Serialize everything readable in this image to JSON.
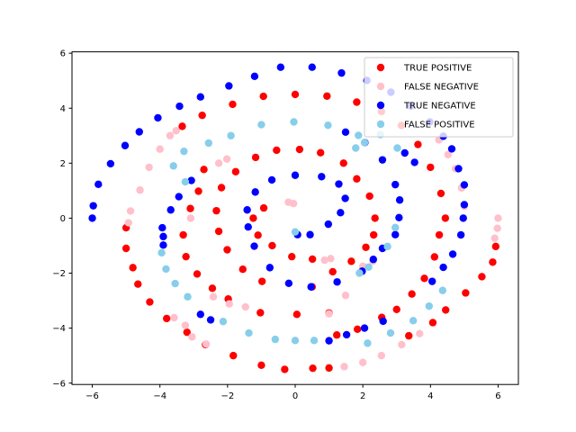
{
  "chart_data": {
    "type": "scatter",
    "title": "",
    "xlabel": "",
    "ylabel": "",
    "xlim": [
      -6.6,
      6.6
    ],
    "ylim": [
      -6.05,
      6.05
    ],
    "xticks": [
      -6,
      -4,
      -2,
      0,
      2,
      4,
      6
    ],
    "xtick_labels": [
      "−6",
      "−4",
      "−2",
      "0",
      "2",
      "4",
      "6"
    ],
    "yticks": [
      -6,
      -4,
      -2,
      0,
      2,
      4,
      6
    ],
    "ytick_labels": [
      "−6",
      "−4",
      "−2",
      "0",
      "2",
      "4",
      "6"
    ],
    "grid": false,
    "legend_position": "top-right",
    "series": [
      {
        "name": "TRUE POSITIVE",
        "color": "#ff0000",
        "points": [
          [
            -0.93,
            0.37
          ],
          [
            -1.24,
            0.0
          ],
          [
            -1.1,
            -0.62
          ],
          [
            -0.68,
            -1.0
          ],
          [
            -0.1,
            -1.4
          ],
          [
            0.51,
            -1.49
          ],
          [
            0.5,
            -2.5
          ],
          [
            -0.98,
            -2.3
          ],
          [
            -1.55,
            -1.86
          ],
          [
            -2.01,
            -1.15
          ],
          [
            -2.26,
            -0.48
          ],
          [
            -2.33,
            0.27
          ],
          [
            -2.18,
            1.11
          ],
          [
            -1.76,
            1.69
          ],
          [
            -1.17,
            2.21
          ],
          [
            -0.55,
            2.47
          ],
          [
            0.13,
            2.5
          ],
          [
            0.75,
            2.38
          ],
          [
            1.43,
            2.0
          ],
          [
            1.82,
            1.43
          ],
          [
            2.2,
            0.8
          ],
          [
            2.36,
            0.0
          ],
          [
            2.32,
            -0.61
          ],
          [
            2.09,
            -1.06
          ],
          [
            1.66,
            -1.57
          ],
          [
            1.11,
            -1.95
          ],
          [
            1.0,
            -3.45
          ],
          [
            0.05,
            -3.5
          ],
          [
            -1.03,
            -3.44
          ],
          [
            -1.98,
            -2.94
          ],
          [
            -2.45,
            -2.55
          ],
          [
            -2.9,
            -2.03
          ],
          [
            -3.23,
            -1.4
          ],
          [
            -3.31,
            -0.61
          ],
          [
            -3.1,
            0.35
          ],
          [
            -2.86,
            0.98
          ],
          [
            -2.7,
            1.77
          ],
          [
            -3.34,
            3.34
          ],
          [
            -2.75,
            3.74
          ],
          [
            -1.85,
            4.14
          ],
          [
            -0.94,
            4.43
          ],
          [
            0.0,
            4.5
          ],
          [
            0.94,
            4.44
          ],
          [
            1.82,
            4.22
          ],
          [
            2.55,
            3.88
          ],
          [
            3.14,
            3.37
          ],
          [
            3.63,
            2.68
          ],
          [
            4.0,
            1.85
          ],
          [
            4.31,
            0.9
          ],
          [
            4.44,
            0.0
          ],
          [
            4.26,
            -0.61
          ],
          [
            4.12,
            -1.41
          ],
          [
            3.82,
            -2.19
          ],
          [
            3.45,
            -2.76
          ],
          [
            3.0,
            -3.32
          ],
          [
            2.56,
            -3.61
          ],
          [
            1.84,
            -4.04
          ],
          [
            1.23,
            -4.25
          ],
          [
            -5.0,
            -0.35
          ],
          [
            -5.0,
            -1.1
          ],
          [
            -4.8,
            -1.8
          ],
          [
            -4.65,
            -2.4
          ],
          [
            -4.3,
            -3.05
          ],
          [
            -3.8,
            -3.65
          ],
          [
            -3.2,
            -4.15
          ],
          [
            -2.65,
            -4.6
          ],
          [
            -1.83,
            -5.0
          ],
          [
            -1.0,
            -5.35
          ],
          [
            -0.31,
            -5.5
          ],
          [
            0.52,
            -5.46
          ],
          [
            1.0,
            -5.45
          ],
          [
            3.36,
            -4.28
          ],
          [
            4.07,
            -3.8
          ],
          [
            4.45,
            -3.34
          ],
          [
            5.04,
            -2.72
          ],
          [
            5.52,
            -2.13
          ],
          [
            5.84,
            -1.6
          ],
          [
            5.93,
            -1.03
          ]
        ]
      },
      {
        "name": "FALSE NEGATIVE",
        "color": "#ffc0cb",
        "points": [
          [
            -0.2,
            0.58
          ],
          [
            -0.05,
            0.53
          ],
          [
            0.87,
            -1.53
          ],
          [
            1.05,
            -1.47
          ],
          [
            -2.26,
            2.0
          ],
          [
            -2.02,
            2.15
          ],
          [
            1.49,
            -2.81
          ],
          [
            1.0,
            -3.48
          ],
          [
            -3.09,
            0.0
          ],
          [
            -2.42,
            -2.86
          ],
          [
            -1.95,
            -3.12
          ],
          [
            -1.47,
            -3.23
          ],
          [
            2.0,
            -1.75
          ],
          [
            2.3,
            -1.56
          ],
          [
            -3.7,
            3.0
          ],
          [
            -3.52,
            3.18
          ],
          [
            -4.0,
            2.51
          ],
          [
            -4.32,
            1.85
          ],
          [
            -4.59,
            1.02
          ],
          [
            -4.87,
            0.26
          ],
          [
            -4.93,
            -0.17
          ],
          [
            -3.25,
            -3.9
          ],
          [
            -3.58,
            -3.62
          ],
          [
            -3.05,
            -4.32
          ],
          [
            -2.63,
            -4.58
          ],
          [
            1.45,
            -5.4
          ],
          [
            2.0,
            -5.25
          ],
          [
            2.55,
            -5.0
          ],
          [
            3.15,
            -4.6
          ],
          [
            3.68,
            -4.2
          ],
          [
            4.25,
            2.85
          ],
          [
            4.52,
            2.31
          ],
          [
            4.74,
            1.8
          ],
          [
            4.92,
            1.1
          ],
          [
            5.0,
            0.43
          ],
          [
            6.0,
            0.0
          ],
          [
            5.98,
            -0.37
          ],
          [
            5.9,
            -0.73
          ]
        ]
      },
      {
        "name": "TRUE NEGATIVE",
        "color": "#0000ff",
        "points": [
          [
            0.07,
            -0.6
          ],
          [
            0.44,
            -0.6
          ],
          [
            0.98,
            -0.22
          ],
          [
            1.34,
            0.2
          ],
          [
            1.48,
            0.72
          ],
          [
            1.29,
            1.24
          ],
          [
            0.78,
            1.51
          ],
          [
            0.0,
            1.56
          ],
          [
            -0.69,
            1.39
          ],
          [
            -1.18,
            0.95
          ],
          [
            -1.42,
            0.3
          ],
          [
            -1.39,
            -0.32
          ],
          [
            -1.21,
            -1.02
          ],
          [
            -0.75,
            -1.8
          ],
          [
            -0.19,
            -2.37
          ],
          [
            0.47,
            -2.5
          ],
          [
            1.24,
            -2.32
          ],
          [
            1.98,
            -1.93
          ],
          [
            2.31,
            -1.5
          ],
          [
            2.58,
            -1.1
          ],
          [
            2.96,
            -0.6
          ],
          [
            3.07,
            0.02
          ],
          [
            3.09,
            0.66
          ],
          [
            2.96,
            1.22
          ],
          [
            2.58,
            2.12
          ],
          [
            2.06,
            2.75
          ],
          [
            1.49,
            3.13
          ],
          [
            3.53,
            2.03
          ],
          [
            3.24,
            2.37
          ],
          [
            -3.07,
            1.37
          ],
          [
            -3.44,
            0.78
          ],
          [
            -3.68,
            0.3
          ],
          [
            -3.93,
            -0.35
          ],
          [
            -3.9,
            -0.67
          ],
          [
            -3.9,
            -0.98
          ],
          [
            -2.8,
            -3.5
          ],
          [
            -2.5,
            -3.7
          ],
          [
            1.0,
            -4.46
          ],
          [
            1.52,
            -4.24
          ],
          [
            2.05,
            -4.0
          ],
          [
            2.6,
            -3.75
          ],
          [
            -6.0,
            0.0
          ],
          [
            -5.97,
            0.45
          ],
          [
            -5.82,
            1.23
          ],
          [
            -5.46,
            1.98
          ],
          [
            -5.03,
            2.64
          ],
          [
            -4.61,
            3.14
          ],
          [
            -4.06,
            3.65
          ],
          [
            -3.42,
            4.07
          ],
          [
            -2.8,
            4.41
          ],
          [
            -1.96,
            4.81
          ],
          [
            -1.2,
            5.16
          ],
          [
            -0.43,
            5.49
          ],
          [
            0.5,
            5.49
          ],
          [
            1.37,
            5.28
          ],
          [
            2.12,
            5.01
          ],
          [
            2.83,
            4.58
          ],
          [
            3.42,
            4.08
          ],
          [
            3.98,
            3.5
          ],
          [
            4.38,
            2.98
          ],
          [
            4.63,
            2.52
          ],
          [
            4.83,
            1.8
          ],
          [
            5.0,
            1.21
          ],
          [
            5.0,
            0.49
          ],
          [
            4.97,
            0.0
          ],
          [
            4.9,
            -0.61
          ],
          [
            4.66,
            -1.31
          ],
          [
            4.38,
            -1.79
          ],
          [
            4.05,
            -2.3
          ]
        ]
      },
      {
        "name": "FALSE POSITIVE",
        "color": "#87ceeb",
        "points": [
          [
            0.0,
            -0.5
          ],
          [
            1.79,
            2.55
          ],
          [
            2.05,
            2.75
          ],
          [
            -2.56,
            2.73
          ],
          [
            -3.25,
            1.32
          ],
          [
            -1.9,
            3.0
          ],
          [
            -1.0,
            3.4
          ],
          [
            -0.04,
            3.5
          ],
          [
            0.97,
            3.38
          ],
          [
            1.87,
            3.01
          ],
          [
            2.52,
            3.04
          ],
          [
            3.02,
            2.55
          ],
          [
            -3.95,
            -1.26
          ],
          [
            -3.82,
            -1.85
          ],
          [
            -3.55,
            -2.38
          ],
          [
            -3.18,
            -2.86
          ],
          [
            -2.13,
            -3.76
          ],
          [
            -1.37,
            -4.18
          ],
          [
            -0.59,
            -4.41
          ],
          [
            0.0,
            -4.45
          ],
          [
            0.56,
            -4.45
          ],
          [
            1.9,
            -2.0
          ],
          [
            2.17,
            -1.78
          ],
          [
            2.73,
            -1.03
          ],
          [
            2.96,
            -0.34
          ],
          [
            4.36,
            -2.63
          ],
          [
            3.96,
            -3.2
          ],
          [
            3.49,
            -3.73
          ],
          [
            2.82,
            -4.18
          ],
          [
            2.14,
            -4.55
          ],
          [
            -3.6,
            1.9
          ],
          [
            -3.29,
            2.43
          ]
        ]
      }
    ]
  }
}
